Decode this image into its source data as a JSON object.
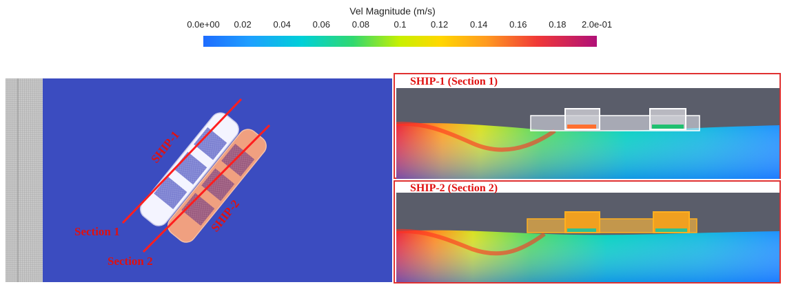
{
  "colorbar": {
    "title": "Vel Magnitude (m/s)",
    "ticks": [
      "0.0e+00",
      "0.02",
      "0.04",
      "0.06",
      "0.08",
      "0.1",
      "0.12",
      "0.14",
      "0.16",
      "0.18",
      "2.0e-01"
    ],
    "min": 0.0,
    "max": 0.2,
    "colors": [
      "#3b4cc0",
      "#1e90ff",
      "#00c8e0",
      "#22d080",
      "#66e030",
      "#ffea00",
      "#ffb000",
      "#ff6a30",
      "#e8254a",
      "#b01a70"
    ]
  },
  "plan_view": {
    "ship1_label": "SHIP-1",
    "ship2_label": "SHIP-2",
    "section1_label": "Section 1",
    "section2_label": "Section 2",
    "background_color": "#3b4cc0"
  },
  "sections": {
    "ship1_title": "SHIP-1 (Section 1)",
    "ship2_title": "SHIP-2 (Section 2)"
  }
}
